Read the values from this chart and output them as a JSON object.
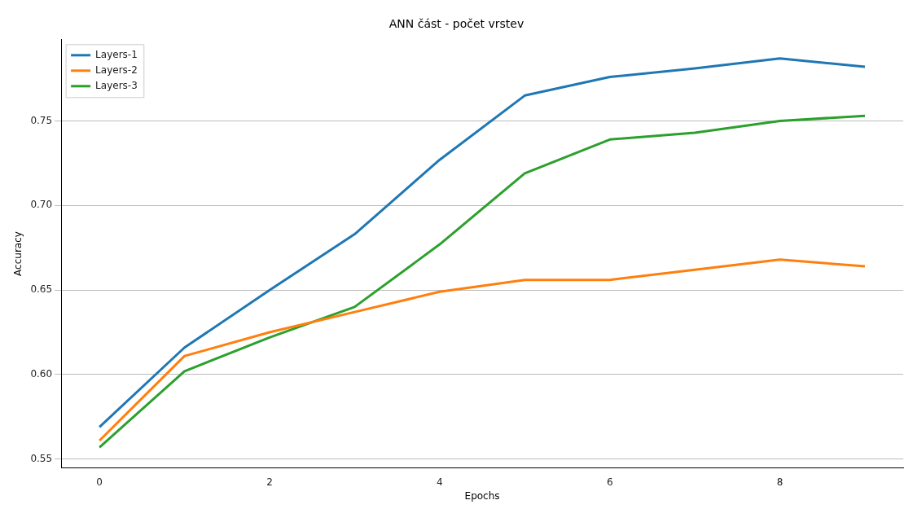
{
  "chart_data": {
    "type": "line",
    "title": "ANN část - počet vrstev",
    "xlabel": "Epochs",
    "ylabel": "Accuracy",
    "x": [
      0,
      1,
      2,
      3,
      4,
      5,
      6,
      7,
      8,
      9
    ],
    "series": [
      {
        "name": "Layers-1",
        "color": "#1f77b4",
        "values": [
          0.569,
          0.616,
          0.65,
          0.683,
          0.727,
          0.765,
          0.776,
          0.781,
          0.787,
          0.782
        ]
      },
      {
        "name": "Layers-2",
        "color": "#ff7f0e",
        "values": [
          0.561,
          0.611,
          0.625,
          0.637,
          0.649,
          0.656,
          0.656,
          0.662,
          0.668,
          0.664
        ]
      },
      {
        "name": "Layers-3",
        "color": "#2ca02c",
        "values": [
          0.557,
          0.602,
          0.622,
          0.64,
          0.677,
          0.719,
          0.739,
          0.743,
          0.75,
          0.753
        ]
      }
    ],
    "xlim": [
      -0.45,
      9.45
    ],
    "ylim": [
      0.545,
      0.798
    ],
    "xticks": [
      0,
      2,
      4,
      6,
      8
    ],
    "yticks": [
      {
        "value": 0.55,
        "label": "0.55"
      },
      {
        "value": 0.6,
        "label": "0.60"
      },
      {
        "value": 0.65,
        "label": "0.65"
      },
      {
        "value": 0.7,
        "label": "0.70"
      },
      {
        "value": 0.75,
        "label": "0.75"
      }
    ],
    "grid": "y",
    "legend": "top left",
    "marker": "none",
    "line_style": "solid"
  }
}
